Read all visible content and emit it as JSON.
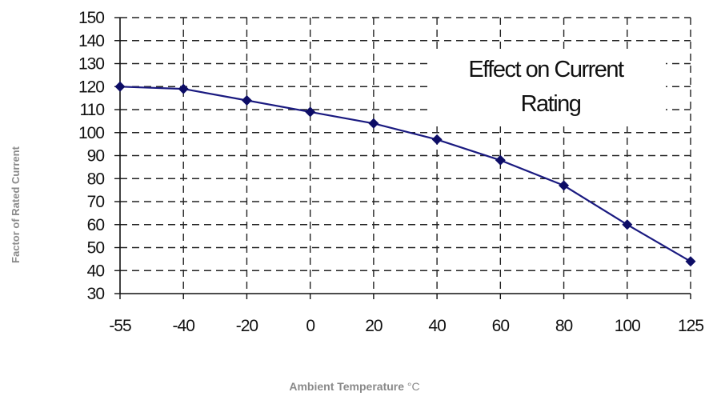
{
  "chart_data": {
    "type": "line",
    "x": [
      -55,
      -40,
      -20,
      0,
      20,
      40,
      60,
      80,
      100,
      125
    ],
    "x_tick_labels": [
      "-55",
      "-40",
      "-20",
      "0",
      "20",
      "40",
      "60",
      "80",
      "100",
      "125"
    ],
    "x_axis_scale": "categorical (equally spaced points)",
    "series": [
      {
        "values": [
          120,
          119,
          114,
          109,
          104,
          97,
          88,
          77,
          60,
          44
        ]
      }
    ],
    "y_ticks": [
      30,
      40,
      50,
      60,
      70,
      80,
      90,
      100,
      110,
      120,
      130,
      140,
      150
    ],
    "ylim": [
      30,
      150
    ],
    "ylabel": "Factor of  Rated Current",
    "xlabel_bold": "Ambient Temperature",
    "xlabel_unit": "°C",
    "annotation_line1": "Effect on Current",
    "annotation_line2": "Rating",
    "grid": true,
    "grid_style": "dashed",
    "marker": "diamond",
    "line_color": "#1a1a80",
    "marker_color": "#0d0d66"
  }
}
